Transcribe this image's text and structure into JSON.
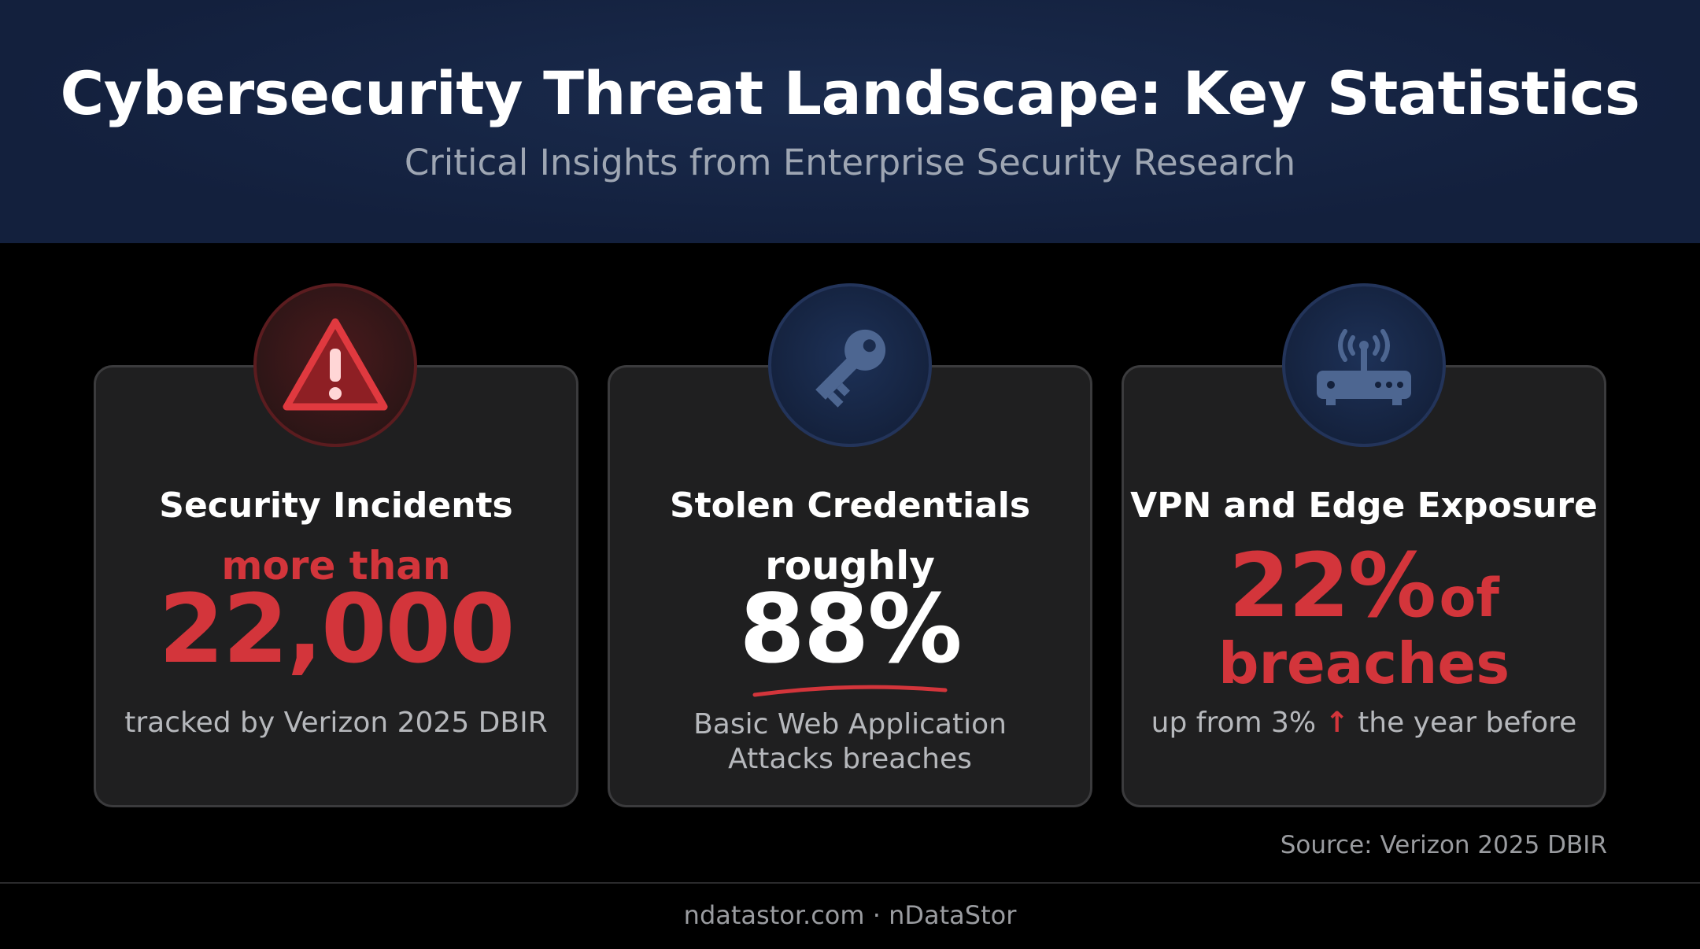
{
  "header": {
    "title": "Cybersecurity Threat Landscape: Key Statistics",
    "subtitle": "Critical Insights from Enterprise Security Research"
  },
  "cards": [
    {
      "icon": "warning-triangle-icon",
      "title": "Security Incidents",
      "qualifier": "more than",
      "value": "22,000",
      "description": "tracked by Verizon 2025 DBIR"
    },
    {
      "icon": "key-icon",
      "title": "Stolen Credentials",
      "qualifier": "roughly",
      "value": "88%",
      "description_line1": "Basic Web Application",
      "description_line2": "Attacks breaches"
    },
    {
      "icon": "router-icon",
      "title": "VPN and Edge Exposure",
      "value": "22%",
      "value_suffix": "of",
      "value_line2": "breaches",
      "description_before": "up from 3%",
      "description_arrow": "↑",
      "description_after": "the year before"
    }
  ],
  "source": "Source: Verizon 2025 DBIR",
  "footer": "ndatastor.com · nDataStor",
  "colors": {
    "header_bg": "#14213f",
    "accent_red": "#d3353b",
    "card_bg": "#1f1f20",
    "badge_blue": "#1d3157"
  }
}
